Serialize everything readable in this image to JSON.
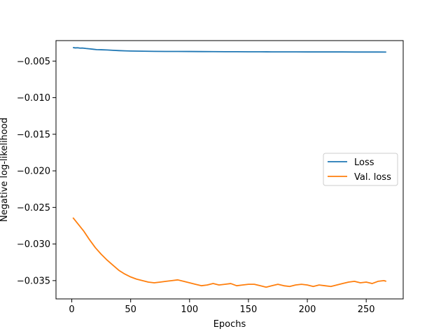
{
  "chart_data": {
    "type": "line",
    "xlabel": "Epochs",
    "ylabel": "Negative log-likelihood",
    "xlim": [
      -13.4,
      281.4
    ],
    "ylim": [
      -0.0375,
      -0.0022
    ],
    "xticks": [
      0,
      50,
      100,
      150,
      200,
      250
    ],
    "xtick_labels": [
      "0",
      "50",
      "100",
      "150",
      "200",
      "250"
    ],
    "yticks": [
      -0.005,
      -0.01,
      -0.015,
      -0.02,
      -0.025,
      -0.03,
      -0.035
    ],
    "ytick_labels": [
      "−0.005",
      "−0.010",
      "−0.015",
      "−0.020",
      "−0.025",
      "−0.030",
      "−0.035"
    ],
    "grid": false,
    "legend_position": "center-right",
    "series": [
      {
        "name": "Loss",
        "color": "#1f77b4",
        "x": [
          1,
          3,
          5,
          7,
          9,
          12,
          15,
          18,
          21,
          25,
          30,
          35,
          40,
          45,
          50,
          60,
          70,
          80,
          90,
          100,
          110,
          120,
          130,
          140,
          150,
          160,
          170,
          180,
          190,
          200,
          210,
          220,
          230,
          240,
          250,
          260,
          267
        ],
        "y": [
          -0.00315,
          -0.0032,
          -0.00318,
          -0.00323,
          -0.00322,
          -0.00328,
          -0.00332,
          -0.00338,
          -0.00343,
          -0.00345,
          -0.00348,
          -0.00353,
          -0.00357,
          -0.0036,
          -0.00362,
          -0.00365,
          -0.00367,
          -0.00368,
          -0.00368,
          -0.00369,
          -0.0037,
          -0.00371,
          -0.00372,
          -0.00372,
          -0.00373,
          -0.00373,
          -0.00374,
          -0.00374,
          -0.00374,
          -0.00375,
          -0.00375,
          -0.00375,
          -0.00375,
          -0.00376,
          -0.00376,
          -0.00376,
          -0.00377
        ]
      },
      {
        "name": "Val. loss",
        "color": "#ff7f0e",
        "x": [
          1,
          5,
          10,
          15,
          20,
          25,
          30,
          35,
          40,
          45,
          50,
          55,
          60,
          65,
          70,
          75,
          80,
          85,
          90,
          95,
          100,
          105,
          110,
          115,
          120,
          125,
          130,
          135,
          140,
          145,
          150,
          155,
          160,
          165,
          170,
          175,
          180,
          185,
          190,
          195,
          200,
          205,
          210,
          215,
          220,
          225,
          230,
          235,
          240,
          245,
          250,
          255,
          260,
          265,
          267
        ],
        "y": [
          -0.0264,
          -0.0272,
          -0.0282,
          -0.0294,
          -0.0305,
          -0.0314,
          -0.0322,
          -0.0329,
          -0.0336,
          -0.0341,
          -0.0345,
          -0.0348,
          -0.035,
          -0.0352,
          -0.0353,
          -0.0352,
          -0.0351,
          -0.035,
          -0.0349,
          -0.0351,
          -0.0353,
          -0.0355,
          -0.0357,
          -0.0356,
          -0.0354,
          -0.0356,
          -0.0355,
          -0.0354,
          -0.0357,
          -0.0356,
          -0.0355,
          -0.0355,
          -0.0357,
          -0.0359,
          -0.0357,
          -0.0355,
          -0.0357,
          -0.0358,
          -0.0356,
          -0.0355,
          -0.0356,
          -0.0358,
          -0.0356,
          -0.0357,
          -0.0358,
          -0.0356,
          -0.0354,
          -0.0352,
          -0.0351,
          -0.0353,
          -0.0352,
          -0.0354,
          -0.0351,
          -0.035,
          -0.0351
        ]
      }
    ]
  }
}
